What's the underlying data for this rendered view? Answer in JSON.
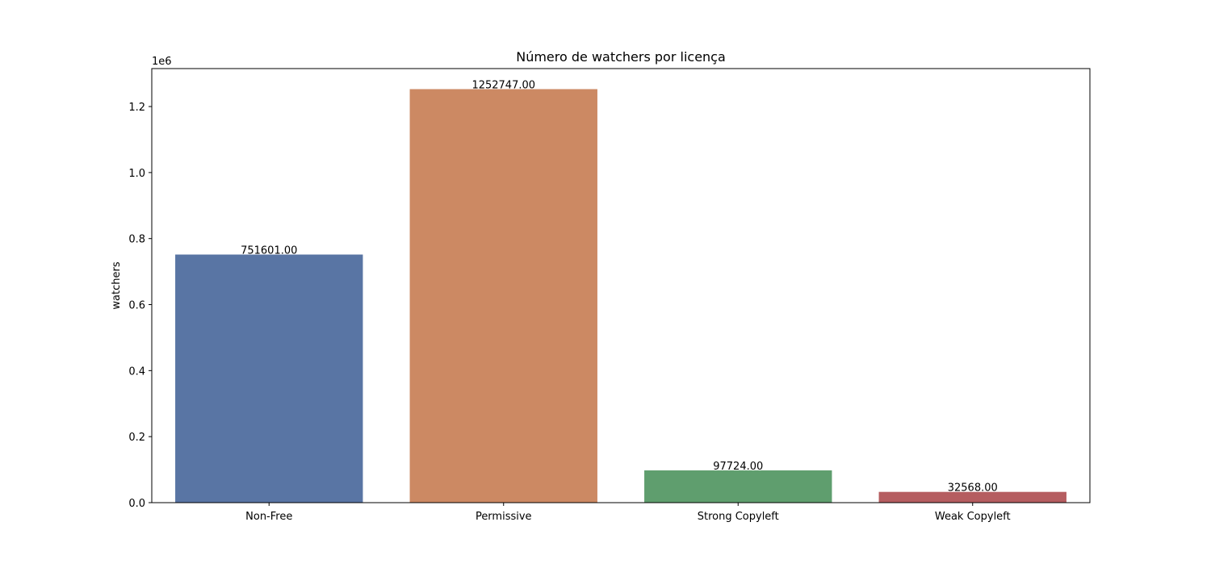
{
  "chart_data": {
    "type": "bar",
    "title": "Número de watchers por licença",
    "xlabel": "",
    "ylabel": "watchers",
    "offset_label": "1e6",
    "categories": [
      "Non-Free",
      "Permissive",
      "Strong Copyleft",
      "Weak Copyleft"
    ],
    "values": [
      751601,
      1252747,
      97724,
      32568
    ],
    "value_labels": [
      "751601.00",
      "1252747.00",
      "97724.00",
      "32568.00"
    ],
    "colors": [
      "#5975a4",
      "#cc8963",
      "#5f9e6e",
      "#b55d60"
    ],
    "ylim": [
      0,
      1315000
    ],
    "yticks": [
      0,
      200000,
      400000,
      600000,
      800000,
      1000000,
      1200000
    ],
    "ytick_labels": [
      "0.0",
      "0.2",
      "0.4",
      "0.6",
      "0.8",
      "1.0",
      "1.2"
    ],
    "grid": false,
    "legend": "none"
  }
}
